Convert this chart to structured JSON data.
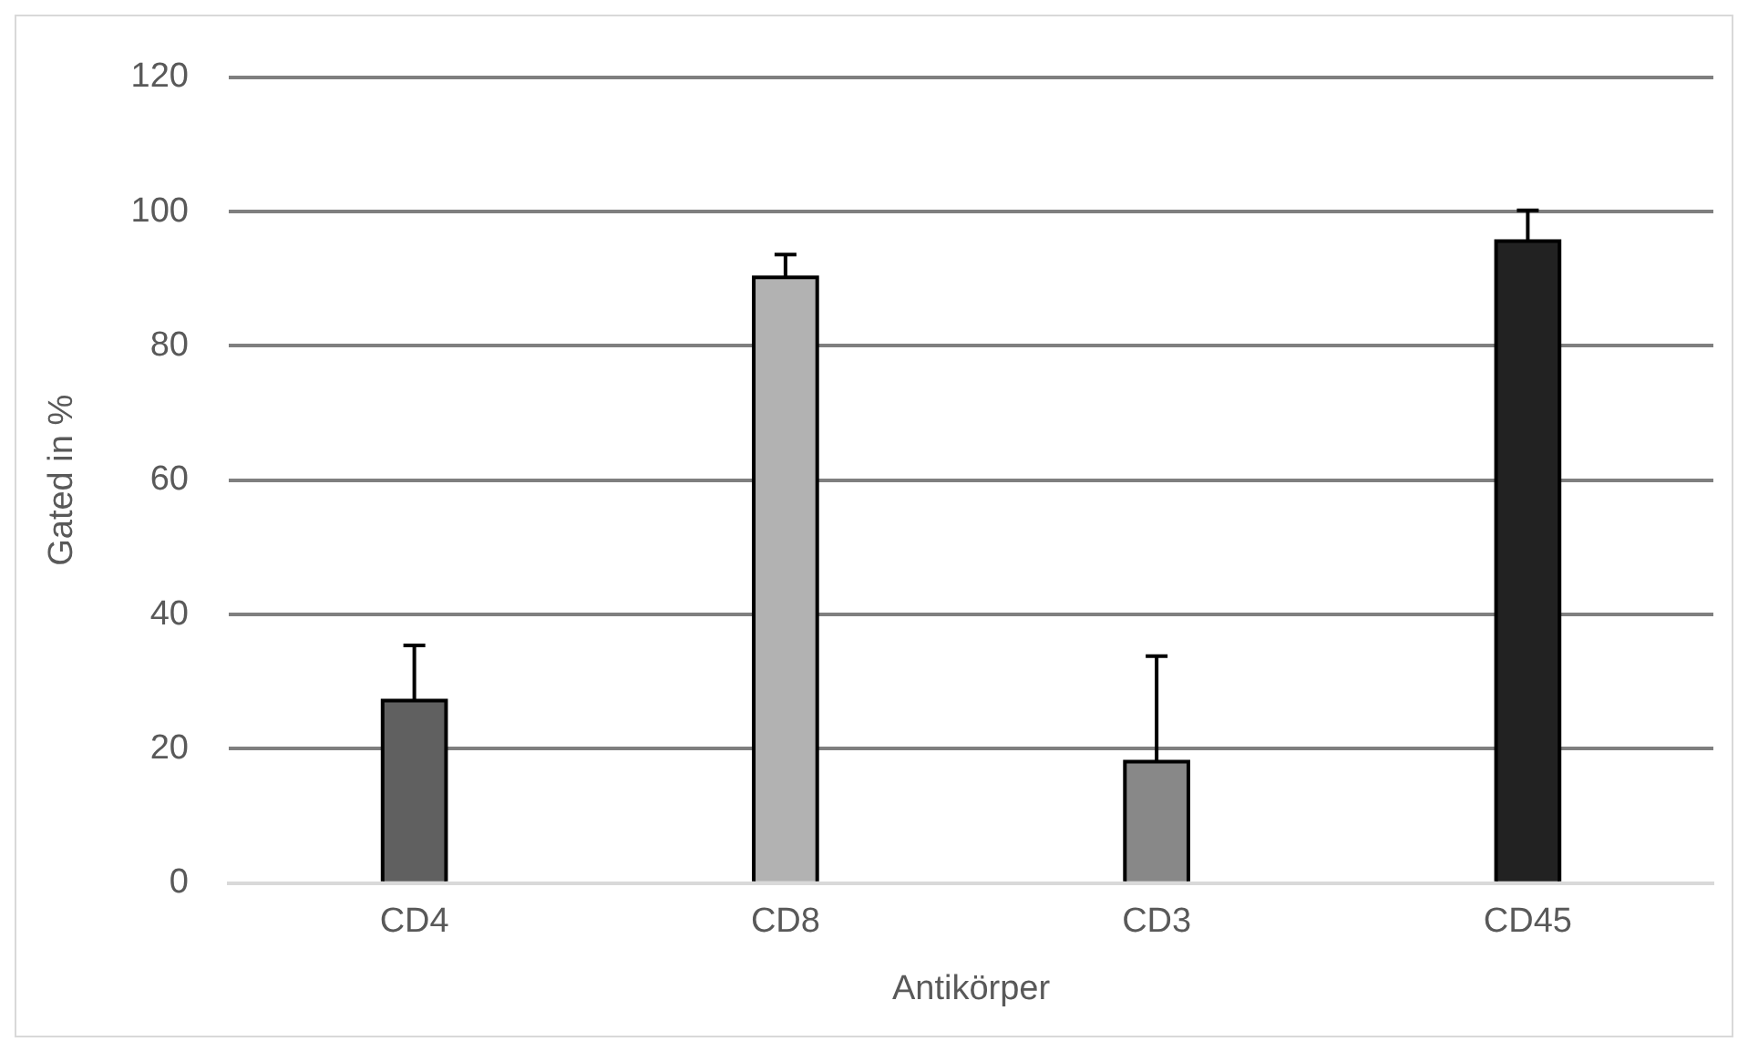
{
  "chart_data": {
    "type": "bar",
    "xlabel": "Antikörper",
    "ylabel": "Gated in %",
    "categories": [
      "CD4",
      "CD8",
      "CD3",
      "CD45"
    ],
    "values": [
      27.2,
      90.2,
      18.1,
      95.6
    ],
    "colors": [
      "#606060",
      "#b2b2b2",
      "#888888",
      "#222222"
    ],
    "errors": [
      [
        27.2,
        35.4
      ],
      [
        90.2,
        93.6
      ],
      [
        18.1,
        33.8
      ],
      [
        95.6,
        100.2
      ]
    ],
    "ylim": [
      0,
      120
    ],
    "yticks": [
      0,
      20,
      40,
      60,
      80,
      100,
      120
    ],
    "grid": "y",
    "legend": false
  }
}
